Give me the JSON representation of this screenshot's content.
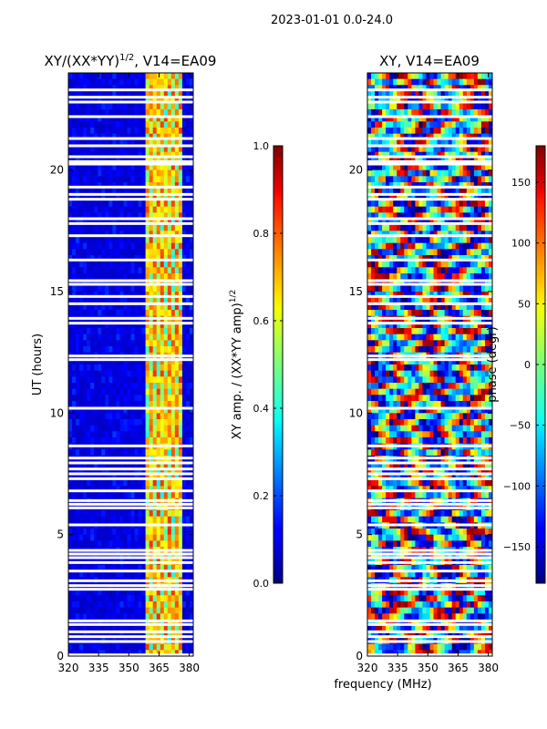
{
  "suptitle": "2023-01-01 0.0-24.0",
  "xlabel": "frequency (MHz)",
  "chart_data": [
    {
      "type": "heatmap",
      "title_main": "XY/(XX*YY)",
      "title_sup": "1/2",
      "title_rest": ", V14=EA09",
      "ylabel": "UT (hours)",
      "xlim": [
        320,
        382
      ],
      "ylim": [
        0,
        24
      ],
      "xticks": [
        320,
        335,
        350,
        365,
        380
      ],
      "yticks": [
        0,
        5,
        10,
        15,
        20
      ],
      "colorbar": {
        "label_main": "XY amp. / (XX*YY amp)",
        "label_sup": "1/2",
        "range": [
          0.0,
          1.0
        ],
        "ticks": [
          "0.0",
          "0.2",
          "0.4",
          "0.6",
          "0.8",
          "1.0"
        ],
        "tick_values": [
          0.0,
          0.2,
          0.4,
          0.6,
          0.8,
          1.0
        ]
      },
      "colormap": "jet",
      "high_band_mhz": [
        359,
        377
      ],
      "flagged_hours": [
        0.05,
        0.6,
        0.8,
        1.0,
        1.3,
        1.45,
        2.75,
        2.9,
        3.1,
        3.5,
        3.85,
        4.05,
        4.2,
        4.35,
        5.4,
        6.1,
        6.25,
        6.4,
        6.8,
        7.3,
        7.5,
        7.7,
        7.95,
        8.15,
        8.65,
        10.2,
        12.2,
        12.35,
        13.7,
        13.9,
        14.5,
        14.8,
        15.3,
        15.45,
        16.3,
        17.3,
        17.8,
        18.0,
        18.8,
        19.0,
        19.3,
        20.25,
        20.35,
        20.55,
        21.0,
        21.3,
        22.2,
        22.8,
        23.0,
        23.3
      ]
    },
    {
      "type": "heatmap",
      "title_main": "XY, V14=EA09",
      "title_sup": "",
      "title_rest": "",
      "ylabel": "",
      "xlim": [
        320,
        382
      ],
      "ylim": [
        0,
        24
      ],
      "xticks": [
        320,
        335,
        350,
        365,
        380
      ],
      "yticks": [
        0,
        5,
        10,
        15,
        20
      ],
      "colorbar": {
        "label_main": "phase (degr)",
        "label_sup": "",
        "range": [
          -180,
          180
        ],
        "ticks": [
          "−150",
          "−100",
          "−50",
          "0",
          "50",
          "100",
          "150"
        ],
        "tick_values": [
          -150,
          -100,
          -50,
          0,
          50,
          100,
          150
        ]
      },
      "colormap": "jet",
      "flagged_hours": [
        0.05,
        0.6,
        0.8,
        1.0,
        1.3,
        1.45,
        2.75,
        2.9,
        3.1,
        3.5,
        3.85,
        4.05,
        4.2,
        4.35,
        5.4,
        6.1,
        6.25,
        6.4,
        6.8,
        7.3,
        7.5,
        7.7,
        7.95,
        8.15,
        8.65,
        10.2,
        12.2,
        12.35,
        13.7,
        13.9,
        14.5,
        14.8,
        15.3,
        15.45,
        16.3,
        17.3,
        17.8,
        18.0,
        18.8,
        19.0,
        19.3,
        20.25,
        20.35,
        20.55,
        21.0,
        21.3,
        22.2,
        22.8,
        23.0,
        23.3
      ]
    }
  ]
}
